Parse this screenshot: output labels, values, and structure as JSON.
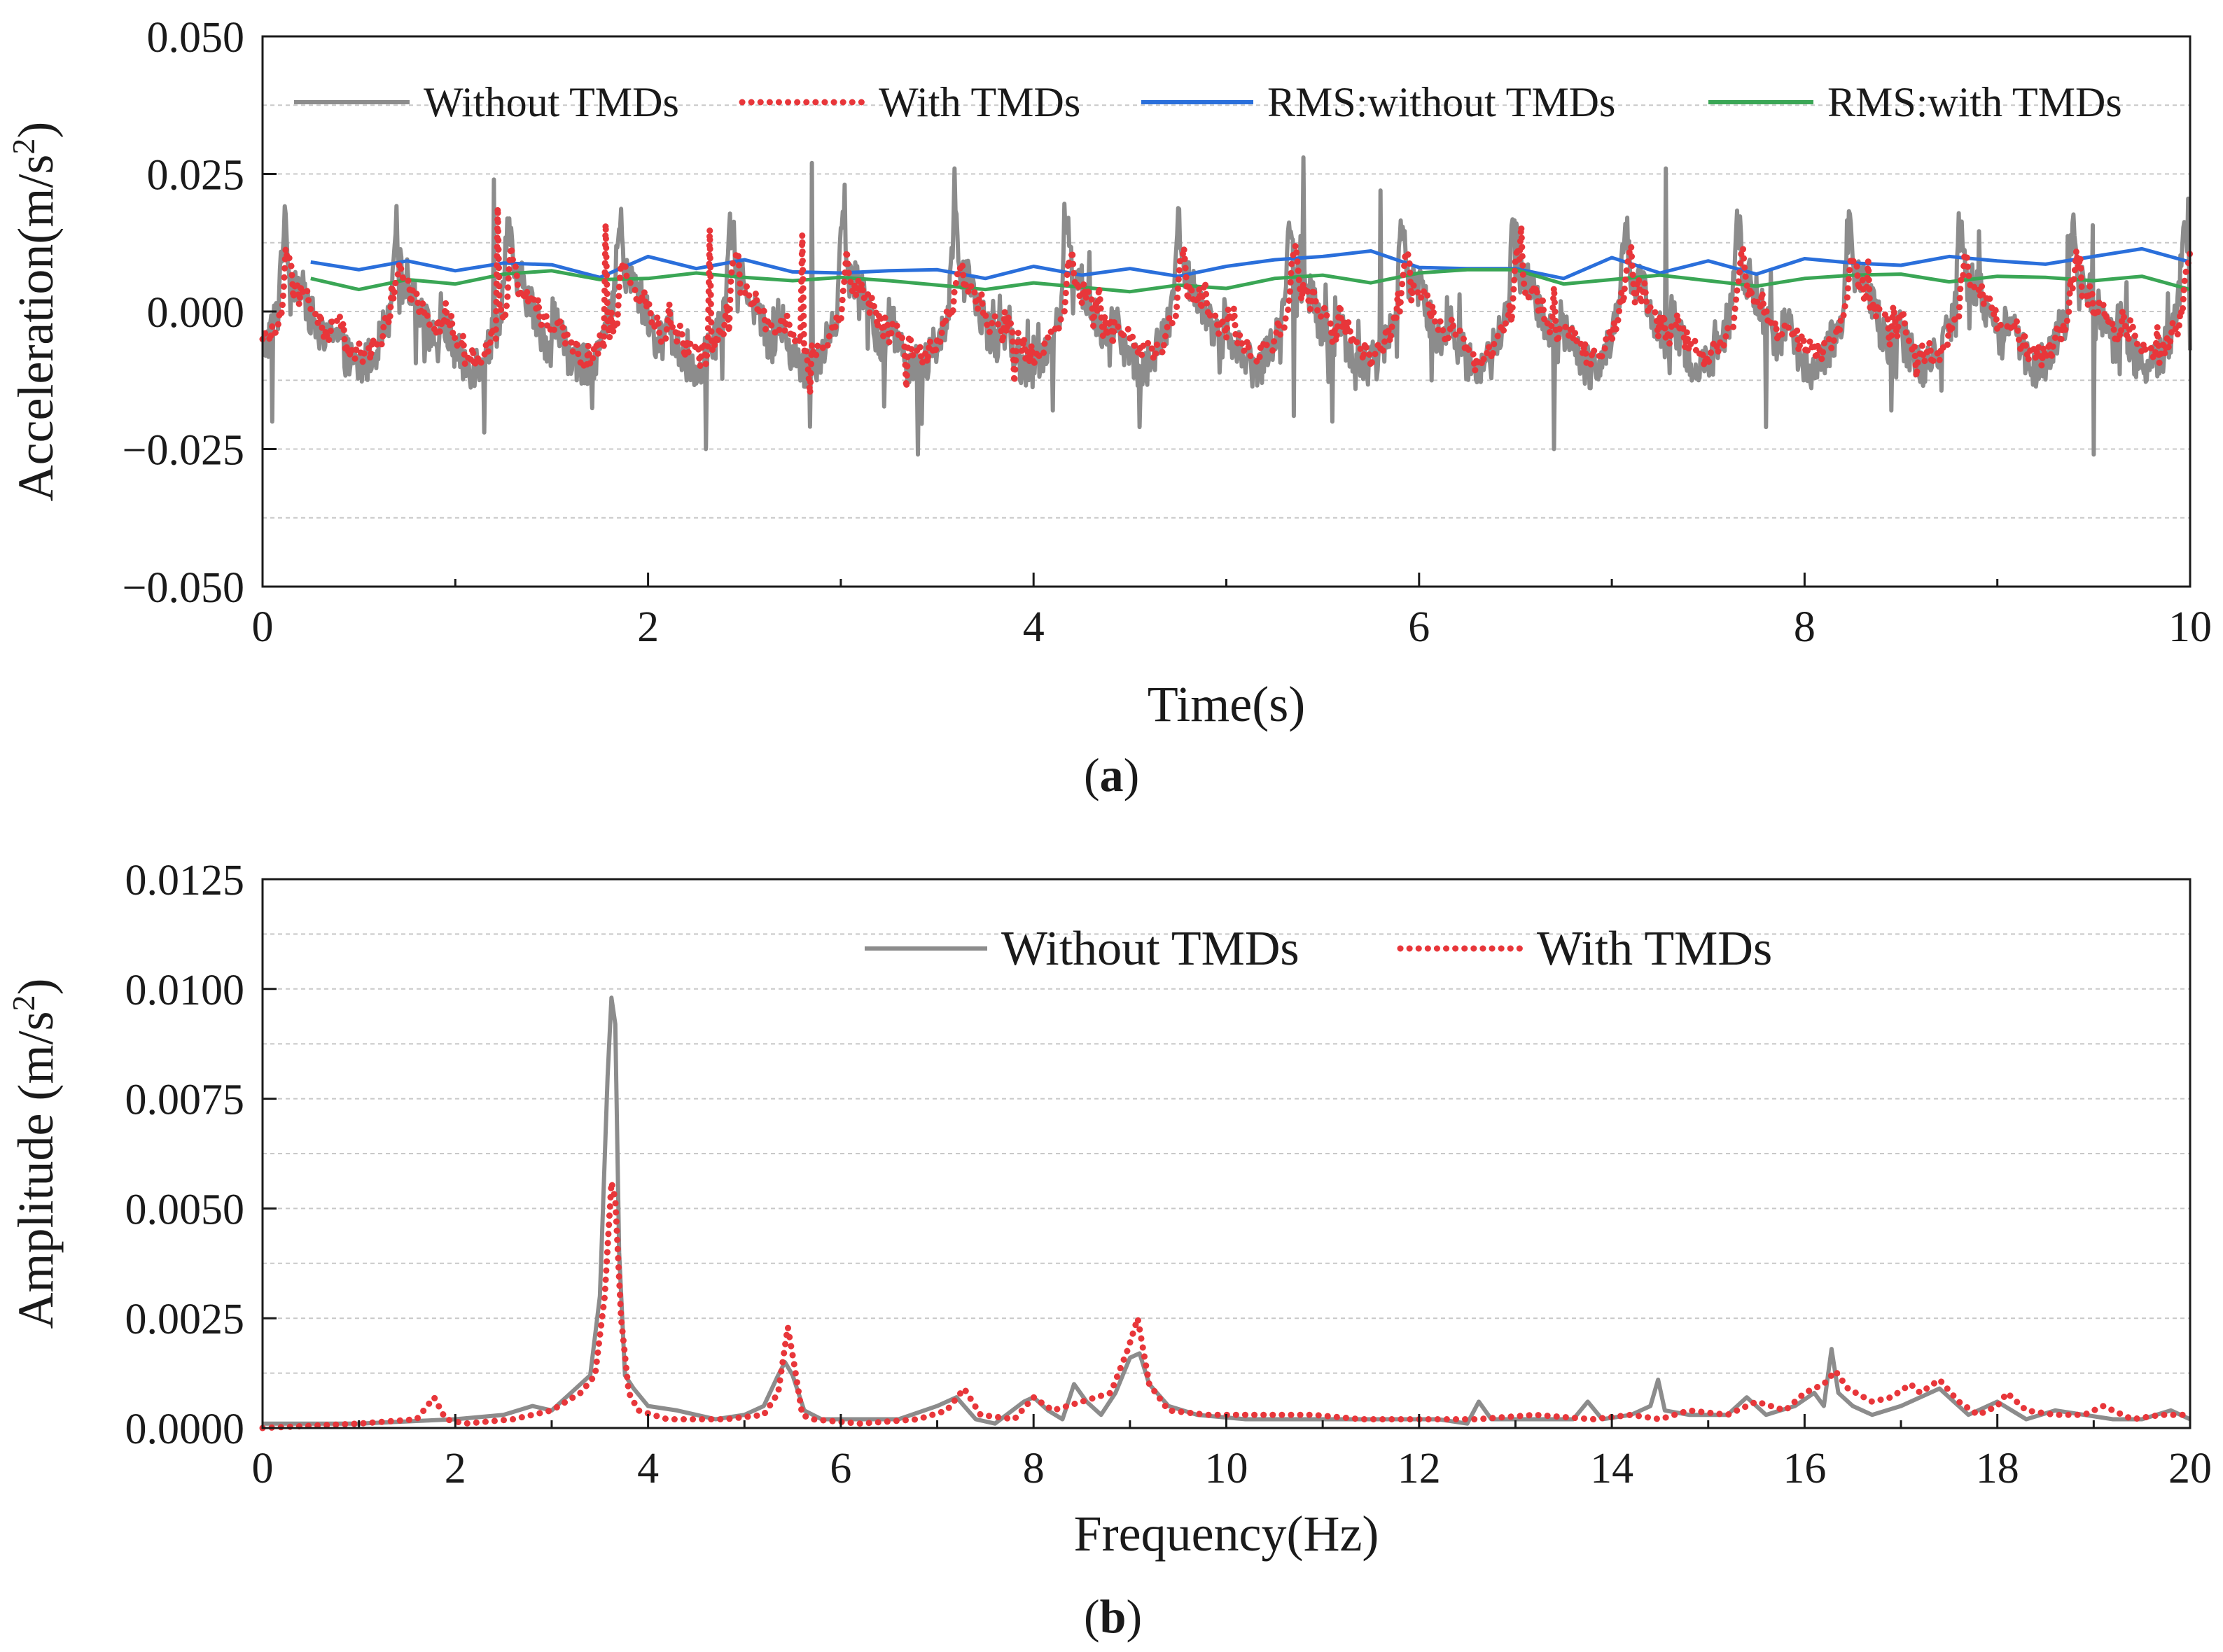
{
  "colors": {
    "without": "#8c8c8c",
    "with": "#e8363a",
    "rms_without": "#2a6fdb",
    "rms_with": "#3aa655",
    "axis": "#1a1a1a",
    "grid": "#c8c8c8"
  },
  "chart_data": [
    {
      "panel": "a",
      "type": "line",
      "caption_letter": "a",
      "xlabel": "Time(s)",
      "ylabel_main": "Acceleration(m/s",
      "ylabel_sup": "2",
      "ylabel_end": ")",
      "xlim": [
        0,
        10
      ],
      "ylim": [
        -0.05,
        0.05
      ],
      "xticks": [
        0,
        2,
        4,
        6,
        8,
        10
      ],
      "xtick_labels": [
        "0",
        "2",
        "4",
        "6",
        "8",
        "10"
      ],
      "xminor": [
        1,
        3,
        5,
        7,
        9
      ],
      "yticks": [
        0.05,
        0.025,
        0.0,
        -0.025,
        -0.05
      ],
      "ytick_labels": [
        "0.050",
        "0.025",
        "0.000",
        "−0.025",
        "−0.050"
      ],
      "ygrid": [
        0.0375,
        0.025,
        0.0125,
        0.0,
        -0.0125,
        -0.025,
        -0.0375
      ],
      "grid": true,
      "legend_position": "top",
      "series": [
        {
          "key": "without",
          "name": "Without TMDs",
          "style": "solid",
          "gen": {
            "dt": 0.005,
            "period": 0.58,
            "offset": 0.08,
            "pulse": 0.017,
            "floor": -0.01,
            "noise": 0.004,
            "spikes": [
              [
                0.05,
                -0.02
              ],
              [
                1.15,
                -0.022
              ],
              [
                2.3,
                -0.025
              ],
              [
                3.4,
                -0.026
              ],
              [
                4.1,
                -0.018
              ],
              [
                4.55,
                -0.021
              ],
              [
                5.35,
                -0.019
              ],
              [
                5.55,
                -0.02
              ],
              [
                6.7,
                -0.025
              ],
              [
                7.8,
                -0.021
              ],
              [
                8.45,
                -0.018
              ],
              [
                9.5,
                -0.026
              ],
              [
                1.2,
                0.024
              ],
              [
                2.85,
                0.027
              ],
              [
                5.4,
                0.028
              ],
              [
                7.28,
                0.026
              ],
              [
                5.8,
                0.022
              ]
            ]
          }
        },
        {
          "key": "with",
          "name": "With TMDs",
          "style": "dotted",
          "gen": {
            "dt": 0.01,
            "period": 0.58,
            "offset": 0.1,
            "pulse": 0.011,
            "floor": -0.008,
            "noise": 0.0025,
            "spikes": [
              [
                1.22,
                0.019
              ],
              [
                1.78,
                0.016
              ],
              [
                2.32,
                0.015
              ],
              [
                2.8,
                0.014
              ],
              [
                3.34,
                -0.014
              ],
              [
                3.9,
                -0.013
              ],
              [
                8.58,
                -0.012
              ]
            ]
          }
        },
        {
          "key": "rms_without",
          "name": "RMS:without TMDs",
          "style": "solid",
          "x": [
            0.25,
            0.5,
            0.75,
            1.0,
            1.25,
            1.5,
            1.75,
            2.0,
            2.25,
            2.5,
            2.75,
            3.0,
            3.25,
            3.5,
            3.75,
            4.0,
            4.25,
            4.5,
            4.75,
            5.0,
            5.25,
            5.5,
            5.75,
            6.0,
            6.25,
            6.5,
            6.75,
            7.0,
            7.25,
            7.5,
            7.75,
            8.0,
            8.25,
            8.5,
            8.75,
            9.0,
            9.25,
            9.5,
            9.75,
            10.0
          ],
          "y": [
            0.009,
            0.0076,
            0.0092,
            0.0074,
            0.0088,
            0.0085,
            0.0062,
            0.01,
            0.0078,
            0.0094,
            0.0072,
            0.007,
            0.0074,
            0.0076,
            0.006,
            0.0082,
            0.0066,
            0.0078,
            0.0064,
            0.0082,
            0.0094,
            0.01,
            0.011,
            0.008,
            0.0078,
            0.0078,
            0.006,
            0.0098,
            0.007,
            0.0092,
            0.0068,
            0.0096,
            0.0088,
            0.0084,
            0.01,
            0.0092,
            0.0086,
            0.01,
            0.0114,
            0.009
          ]
        },
        {
          "key": "rms_with",
          "name": "RMS:with TMDs",
          "style": "solid",
          "x": [
            0.25,
            0.5,
            0.75,
            1.0,
            1.25,
            1.5,
            1.75,
            2.0,
            2.25,
            2.5,
            2.75,
            3.0,
            3.25,
            3.5,
            3.75,
            4.0,
            4.25,
            4.5,
            4.75,
            5.0,
            5.25,
            5.5,
            5.75,
            6.0,
            6.25,
            6.5,
            6.75,
            7.0,
            7.25,
            7.5,
            7.75,
            8.0,
            8.25,
            8.5,
            8.75,
            9.0,
            9.25,
            9.5,
            9.75,
            10.0
          ],
          "y": [
            0.006,
            0.004,
            0.0058,
            0.005,
            0.0068,
            0.0074,
            0.0058,
            0.006,
            0.007,
            0.0062,
            0.0056,
            0.0062,
            0.0056,
            0.0048,
            0.004,
            0.0052,
            0.0044,
            0.0036,
            0.0048,
            0.0042,
            0.006,
            0.0066,
            0.0052,
            0.007,
            0.0076,
            0.0076,
            0.005,
            0.0058,
            0.0066,
            0.0056,
            0.0046,
            0.006,
            0.0066,
            0.0068,
            0.0054,
            0.0064,
            0.0062,
            0.0056,
            0.0064,
            0.004
          ]
        }
      ]
    },
    {
      "panel": "b",
      "type": "line",
      "caption_letter": "b",
      "xlabel": "Frequency(Hz)",
      "ylabel_main": "Amplitude (m/s",
      "ylabel_sup": "2",
      "ylabel_end": ")",
      "xlim": [
        0,
        20
      ],
      "ylim": [
        0,
        0.0125
      ],
      "xticks": [
        0,
        2,
        4,
        6,
        8,
        10,
        12,
        14,
        16,
        18,
        20
      ],
      "xtick_labels": [
        "0",
        "2",
        "4",
        "6",
        "8",
        "10",
        "12",
        "14",
        "16",
        "18",
        "20"
      ],
      "xminor": [
        1,
        3,
        5,
        7,
        9,
        11,
        13,
        15,
        17,
        19
      ],
      "yticks": [
        0.0125,
        0.01,
        0.0075,
        0.005,
        0.0025,
        0.0
      ],
      "ytick_labels": [
        "0.0125",
        "0.0100",
        "0.0075",
        "0.0050",
        "0.0025",
        "0.0000"
      ],
      "ygrid": [
        0.01125,
        0.01,
        0.00875,
        0.0075,
        0.00625,
        0.005,
        0.00375,
        0.0025,
        0.00125
      ],
      "grid": true,
      "legend_position": "top",
      "series": [
        {
          "key": "without",
          "name": "Without TMDs",
          "style": "solid",
          "x": [
            0,
            1,
            2,
            2.5,
            2.8,
            3.0,
            3.2,
            3.4,
            3.5,
            3.58,
            3.62,
            3.66,
            3.7,
            3.76,
            3.85,
            4.0,
            4.3,
            4.7,
            5.0,
            5.2,
            5.35,
            5.42,
            5.5,
            5.62,
            5.8,
            6.2,
            6.6,
            7.0,
            7.2,
            7.4,
            7.6,
            7.9,
            8.0,
            8.15,
            8.3,
            8.42,
            8.55,
            8.7,
            8.85,
            9.0,
            9.1,
            9.2,
            9.4,
            9.7,
            10.2,
            10.7,
            11.2,
            11.7,
            12.2,
            12.5,
            12.62,
            12.75,
            13.0,
            13.3,
            13.6,
            13.75,
            13.9,
            14.2,
            14.4,
            14.48,
            14.55,
            14.8,
            15.2,
            15.4,
            15.6,
            15.9,
            16.1,
            16.2,
            16.28,
            16.35,
            16.5,
            16.7,
            17.0,
            17.2,
            17.4,
            17.7,
            18.0,
            18.3,
            18.6,
            18.9,
            19.2,
            19.5,
            19.8,
            20.0
          ],
          "y": [
            0.0001,
            0.0001,
            0.0002,
            0.0003,
            0.0005,
            0.0004,
            0.0008,
            0.0012,
            0.003,
            0.008,
            0.0098,
            0.0092,
            0.004,
            0.0012,
            0.0009,
            0.0005,
            0.0004,
            0.0002,
            0.0003,
            0.0005,
            0.0012,
            0.0015,
            0.0012,
            0.0004,
            0.0002,
            0.0002,
            0.0002,
            0.0005,
            0.0007,
            0.0002,
            0.0001,
            0.0006,
            0.0007,
            0.0004,
            0.0002,
            0.001,
            0.0006,
            0.0003,
            0.0008,
            0.0016,
            0.0017,
            0.001,
            0.0005,
            0.0003,
            0.0002,
            0.0002,
            0.0002,
            0.0002,
            0.0002,
            0.0001,
            0.0006,
            0.0002,
            0.0002,
            0.0002,
            0.0002,
            0.0006,
            0.0002,
            0.0003,
            0.0005,
            0.0011,
            0.0004,
            0.0003,
            0.0003,
            0.0007,
            0.0003,
            0.0005,
            0.0008,
            0.0005,
            0.0018,
            0.0008,
            0.0005,
            0.0003,
            0.0005,
            0.0007,
            0.0009,
            0.0003,
            0.0006,
            0.0002,
            0.0004,
            0.0003,
            0.0002,
            0.0002,
            0.0004,
            0.0002
          ]
        },
        {
          "key": "with",
          "name": "With TMDs",
          "style": "dotted",
          "x": [
            0,
            1.0,
            1.6,
            1.78,
            1.9,
            2.1,
            2.6,
            3.0,
            3.3,
            3.45,
            3.55,
            3.62,
            3.66,
            3.72,
            3.8,
            3.9,
            4.2,
            4.8,
            5.2,
            5.35,
            5.45,
            5.52,
            5.6,
            5.7,
            6.2,
            6.8,
            7.1,
            7.28,
            7.45,
            7.8,
            8.0,
            8.2,
            8.5,
            8.8,
            8.98,
            9.08,
            9.2,
            9.4,
            9.8,
            10.4,
            10.9,
            11.4,
            12.0,
            12.6,
            13.2,
            13.8,
            14.2,
            14.5,
            14.8,
            15.2,
            15.5,
            15.8,
            16.0,
            16.2,
            16.32,
            16.45,
            16.7,
            16.9,
            17.1,
            17.2,
            17.4,
            17.6,
            17.8,
            18.0,
            18.1,
            18.3,
            18.6,
            18.9,
            19.1,
            19.4,
            19.7,
            20.0
          ],
          "y": [
            0.0,
            0.0001,
            0.0002,
            0.0007,
            0.0002,
            0.0001,
            0.0002,
            0.0004,
            0.0008,
            0.0012,
            0.003,
            0.0056,
            0.0052,
            0.0025,
            0.0008,
            0.0004,
            0.0002,
            0.0002,
            0.0003,
            0.0008,
            0.0023,
            0.0014,
            0.0003,
            0.0002,
            0.0001,
            0.0002,
            0.0004,
            0.0009,
            0.0003,
            0.0002,
            0.0007,
            0.0004,
            0.0006,
            0.0008,
            0.0018,
            0.0025,
            0.001,
            0.0004,
            0.0003,
            0.0003,
            0.0003,
            0.0002,
            0.0002,
            0.0002,
            0.0003,
            0.0002,
            0.0003,
            0.0002,
            0.0004,
            0.0003,
            0.0006,
            0.0004,
            0.0008,
            0.001,
            0.0013,
            0.0009,
            0.0006,
            0.0007,
            0.001,
            0.0008,
            0.0011,
            0.0006,
            0.0003,
            0.0005,
            0.0008,
            0.0004,
            0.0003,
            0.0003,
            0.0005,
            0.0002,
            0.0003,
            0.0003
          ]
        }
      ]
    }
  ]
}
